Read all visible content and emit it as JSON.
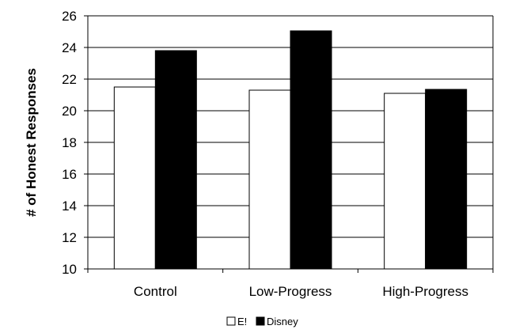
{
  "chart_data": {
    "type": "bar",
    "categories": [
      "Control",
      "Low-Progress",
      "High-Progress"
    ],
    "series": [
      {
        "name": "E!",
        "values": [
          21.5,
          21.3,
          21.1
        ],
        "color": "#ffffff"
      },
      {
        "name": "Disney",
        "values": [
          23.8,
          25.05,
          21.35
        ],
        "color": "#000000"
      }
    ],
    "xlabel": "",
    "ylabel": "# of Honest Responses",
    "ylim": [
      10,
      26
    ],
    "yticks": [
      10,
      12,
      14,
      16,
      18,
      20,
      22,
      24,
      26
    ],
    "grid": true,
    "legend": "bottom-center"
  }
}
